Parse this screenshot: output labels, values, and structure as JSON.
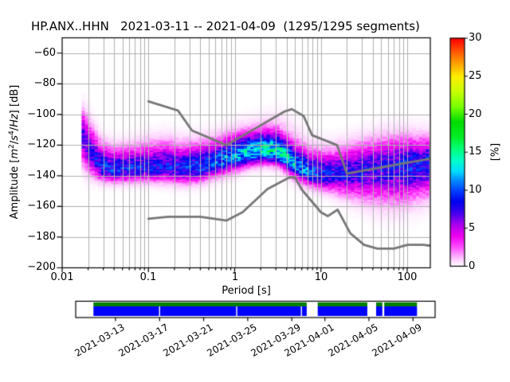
{
  "title": "HP.ANX..HHN   2021-03-11 -- 2021-04-09  (1295/1295 segments)",
  "axes": {
    "xlabel": "Period [s]",
    "ylabel_parts": {
      "prefix": "Amplitude [",
      "m": "m",
      "m_exp": "2",
      "slash1": "/",
      "s": "s",
      "s_exp": "4",
      "slash2": "/",
      "hz": "Hz",
      "suffix": "] [dB]"
    },
    "x_tick_labels": [
      "0.01",
      "0.1",
      "1",
      "10",
      "100"
    ],
    "y_tick_labels": [
      "−60",
      "−80",
      "−100",
      "−120",
      "−140",
      "−160",
      "−180",
      "−200"
    ]
  },
  "colorbar": {
    "label": "[%]",
    "tick_labels": [
      "0",
      "5",
      "10",
      "15",
      "20",
      "25",
      "30"
    ]
  },
  "timeline": {
    "date_labels": [
      "2021-03-13",
      "2021-03-17",
      "2021-03-21",
      "2021-03-25",
      "2021-03-29",
      "2021-04-01",
      "2021-04-05",
      "2021-04-09"
    ]
  },
  "chart_data": {
    "type": "heatmap",
    "title": "HP.ANX..HHN   2021-03-11 -- 2021-04-09  (1295/1295 segments)",
    "xlabel": "Period [s]",
    "ylabel": "Amplitude [m^2/s^4/Hz] [dB]",
    "x_scale": "log",
    "xlim": [
      0.01,
      185
    ],
    "ylim": [
      -200,
      -50
    ],
    "grid": true,
    "x_ticks": [
      0.01,
      0.1,
      1,
      10,
      100
    ],
    "y_ticks": [
      -60,
      -80,
      -100,
      -120,
      -140,
      -160,
      -180,
      -200
    ],
    "colorbar": {
      "label": "[%]",
      "range": [
        0,
        30
      ],
      "ticks": [
        0,
        5,
        10,
        15,
        20,
        25,
        30
      ]
    },
    "colormap_stops": [
      [
        0,
        "#ffffff"
      ],
      [
        1,
        "#ffc8ff"
      ],
      [
        2.5,
        "#ff50ff"
      ],
      [
        4,
        "#ee00ee"
      ],
      [
        5.5,
        "#aa00ee"
      ],
      [
        7,
        "#4400ee"
      ],
      [
        8.5,
        "#0000ee"
      ],
      [
        10,
        "#0044ff"
      ],
      [
        11.5,
        "#0096ff"
      ],
      [
        12.5,
        "#00dcff"
      ],
      [
        14,
        "#00ffc8"
      ],
      [
        15.5,
        "#00ff78"
      ],
      [
        17,
        "#00ee28"
      ],
      [
        19,
        "#00dc00"
      ],
      [
        21,
        "#78ff00"
      ],
      [
        23,
        "#c8ff00"
      ],
      [
        25,
        "#ffee00"
      ],
      [
        26.5,
        "#ffaa00"
      ],
      [
        28,
        "#ff6400"
      ],
      [
        30,
        "#ff0000"
      ]
    ],
    "noise_models": {
      "color": "#777777",
      "line_width": 2.8,
      "nhnm": [
        [
          0.1,
          -91.5
        ],
        [
          0.22,
          -97.4
        ],
        [
          0.32,
          -110.5
        ],
        [
          0.8,
          -120.0
        ],
        [
          3.8,
          -98.0
        ],
        [
          4.6,
          -96.5
        ],
        [
          6.3,
          -101.0
        ],
        [
          7.9,
          -113.5
        ],
        [
          15.4,
          -120.0
        ],
        [
          20.0,
          -138.5
        ],
        [
          185.0,
          -128.8
        ]
      ],
      "nlnm": [
        [
          0.1,
          -168.0
        ],
        [
          0.17,
          -166.7
        ],
        [
          0.4,
          -166.7
        ],
        [
          0.8,
          -169.2
        ],
        [
          1.24,
          -163.7
        ],
        [
          2.4,
          -148.6
        ],
        [
          4.3,
          -141.1
        ],
        [
          5.0,
          -141.1
        ],
        [
          6.0,
          -149.0
        ],
        [
          10.0,
          -163.8
        ],
        [
          12.0,
          -166.3
        ],
        [
          15.6,
          -162.1
        ],
        [
          21.9,
          -177.5
        ],
        [
          31.6,
          -185.0
        ],
        [
          45.0,
          -187.5
        ],
        [
          70.0,
          -187.5
        ],
        [
          101.0,
          -185.0
        ],
        [
          154.0,
          -185.0
        ],
        [
          185.0,
          -185.6
        ]
      ]
    },
    "ppsd_distribution": {
      "period_step_octaves": 0.125,
      "db_bin_width": 1,
      "columns": {
        "fields": [
          "log10_period",
          "mode_db",
          "max_pct",
          "spread_down_db",
          "spread_up_db",
          "halo_pct",
          "halo_sigma_db"
        ],
        "values": [
          [
            -1.76,
            -115.0,
            7.5,
            10.0,
            10.0,
            0.0,
            10
          ],
          [
            -1.7,
            -122.0,
            7.0,
            9.0,
            11.0,
            0.0,
            10
          ],
          [
            -1.63,
            -129.0,
            8.0,
            6.5,
            10.5,
            0.2,
            10
          ],
          [
            -1.55,
            -134.5,
            8.5,
            5.0,
            9.0,
            0.2,
            10
          ],
          [
            -1.4,
            -136.5,
            9.0,
            4.5,
            8.0,
            0.2,
            9
          ],
          [
            -1.2,
            -136.0,
            8.5,
            4.5,
            8.5,
            0.25,
            9
          ],
          [
            -1.0,
            -135.0,
            8.0,
            5.0,
            9.0,
            0.3,
            9
          ],
          [
            -0.8,
            -134.5,
            8.0,
            5.5,
            9.5,
            0.3,
            9
          ],
          [
            -0.6,
            -135.5,
            8.5,
            5.5,
            9.0,
            0.3,
            9
          ],
          [
            -0.4,
            -134.5,
            9.0,
            5.5,
            9.0,
            0.35,
            9
          ],
          [
            -0.25,
            -132.0,
            9.5,
            5.5,
            8.5,
            0.4,
            9
          ],
          [
            -0.1,
            -129.0,
            10.5,
            5.5,
            8.0,
            0.5,
            9
          ],
          [
            0.05,
            -126.5,
            11.5,
            5.5,
            8.0,
            0.6,
            9
          ],
          [
            0.2,
            -124.5,
            12.5,
            5.0,
            7.5,
            0.8,
            9
          ],
          [
            0.35,
            -123.2,
            13.5,
            5.0,
            7.0,
            1.2,
            9
          ],
          [
            0.5,
            -124.0,
            13.0,
            5.0,
            7.0,
            1.5,
            10
          ],
          [
            0.62,
            -129.0,
            12.0,
            5.0,
            7.0,
            1.5,
            11
          ],
          [
            0.75,
            -134.5,
            10.5,
            5.0,
            7.5,
            1.2,
            11
          ],
          [
            0.88,
            -138.0,
            9.5,
            5.0,
            8.0,
            0.8,
            10
          ],
          [
            1.0,
            -139.5,
            8.5,
            5.5,
            8.5,
            0.5,
            10
          ],
          [
            1.15,
            -139.5,
            8.0,
            6.5,
            9.0,
            0.4,
            10
          ],
          [
            1.3,
            -138.5,
            7.5,
            8.5,
            10.0,
            0.3,
            10
          ],
          [
            1.5,
            -136.5,
            7.5,
            11.0,
            10.5,
            0.3,
            10
          ],
          [
            1.7,
            -135.0,
            7.5,
            13.0,
            11.0,
            0.3,
            10
          ],
          [
            1.9,
            -134.0,
            8.0,
            13.5,
            11.0,
            0.3,
            10
          ],
          [
            2.1,
            -133.0,
            8.5,
            12.5,
            10.0,
            0.3,
            10
          ],
          [
            2.267,
            -132.5,
            8.5,
            11.5,
            10.0,
            0.3,
            10
          ]
        ]
      }
    },
    "coverage": {
      "data_start": "2021-03-11",
      "data_end": "2021-04-09",
      "used_color": "#008000",
      "data_color": "#0000ff",
      "bar_day_range": [
        -1.61,
        31.0
      ],
      "tick_days": [
        2,
        6,
        10,
        14,
        18,
        21,
        25,
        29
      ],
      "segments_days": [
        [
          0,
          19.35
        ],
        [
          20.35,
          24.85
        ],
        [
          25.65,
          29.36
        ]
      ],
      "thin_gap_days": [
        6,
        13,
        18.87
      ],
      "full_gap_days": [
        26.3
      ]
    }
  }
}
